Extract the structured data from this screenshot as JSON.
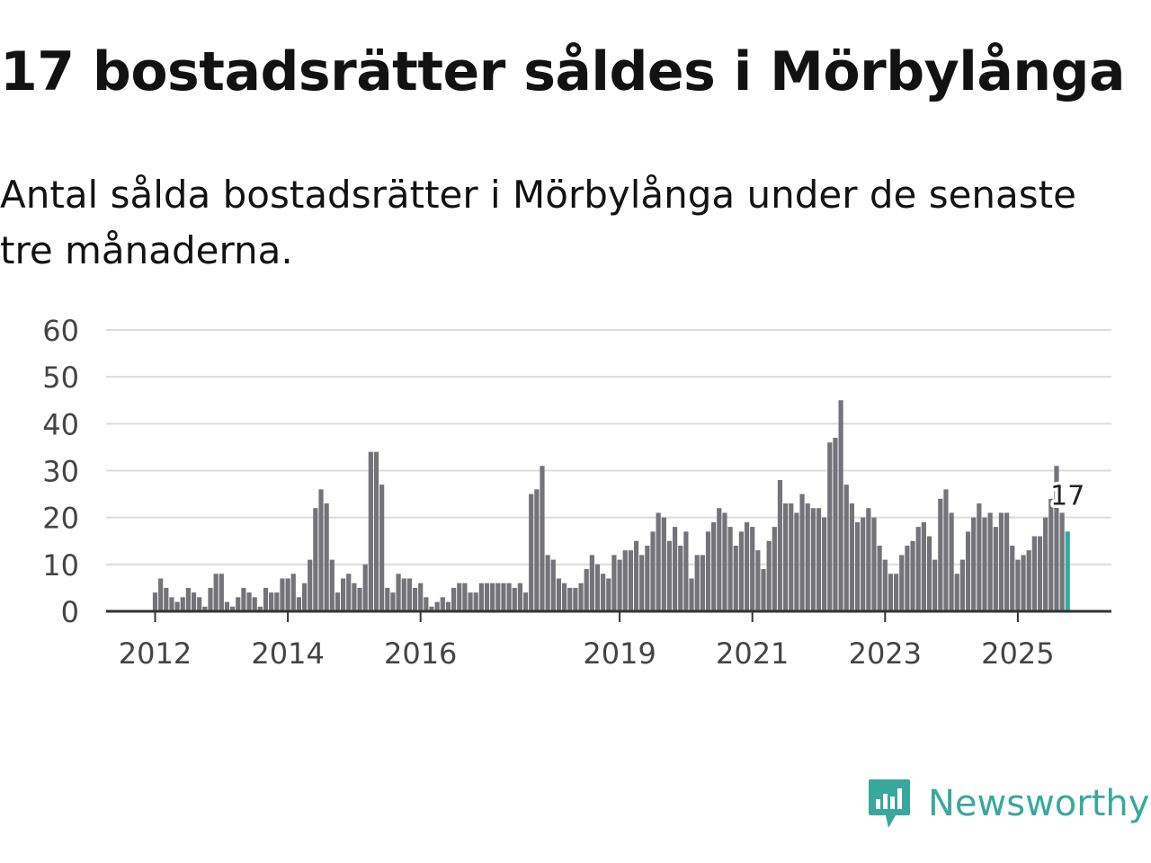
{
  "title": "17 bostadsrätter såldes i Mörbylånga",
  "subtitle": "Antal sålda bostadsrätter i Mörbylånga under de senaste tre månaderna.",
  "brand": {
    "name": "Newsworthy",
    "icon": "newsworthy-logo-icon",
    "color": "#3aa79c"
  },
  "chart_data": {
    "type": "bar",
    "ylim": [
      0,
      60
    ],
    "y_ticks": [
      "0",
      "10",
      "20",
      "30",
      "40",
      "50",
      "60"
    ],
    "x_tick_labels": [
      {
        "label": "2012",
        "index": 0
      },
      {
        "label": "2014",
        "index": 24
      },
      {
        "label": "2016",
        "index": 48
      },
      {
        "label": "2019",
        "index": 84
      },
      {
        "label": "2021",
        "index": 108
      },
      {
        "label": "2023",
        "index": 132
      },
      {
        "label": "2025",
        "index": 156
      }
    ],
    "start": "2012-01",
    "values": [
      4,
      7,
      5,
      3,
      2,
      3,
      5,
      4,
      3,
      1,
      5,
      8,
      8,
      2,
      1,
      3,
      5,
      4,
      3,
      1,
      5,
      4,
      4,
      7,
      7,
      8,
      3,
      6,
      11,
      22,
      26,
      23,
      11,
      4,
      7,
      8,
      6,
      5,
      10,
      34,
      34,
      27,
      5,
      4,
      8,
      7,
      7,
      5,
      6,
      3,
      1,
      2,
      3,
      2,
      5,
      6,
      6,
      4,
      4,
      6,
      6,
      6,
      6,
      6,
      6,
      5,
      6,
      4,
      25,
      26,
      31,
      12,
      11,
      7,
      6,
      5,
      5,
      6,
      9,
      12,
      10,
      8,
      7,
      12,
      11,
      13,
      13,
      15,
      12,
      14,
      17,
      21,
      20,
      15,
      18,
      14,
      17,
      7,
      12,
      12,
      17,
      19,
      22,
      21,
      18,
      14,
      17,
      19,
      18,
      13,
      9,
      15,
      18,
      28,
      23,
      23,
      21,
      25,
      23,
      22,
      22,
      20,
      36,
      37,
      45,
      27,
      23,
      19,
      20,
      22,
      20,
      14,
      11,
      8,
      8,
      12,
      14,
      15,
      18,
      19,
      16,
      11,
      24,
      26,
      21,
      8,
      11,
      17,
      20,
      23,
      20,
      21,
      18,
      21,
      21,
      14,
      11,
      12,
      13,
      16,
      16,
      20,
      24,
      31,
      21,
      17
    ],
    "highlight": {
      "label": "17",
      "value": 17,
      "color": "#3aa79c"
    },
    "bar_color": "#74737a",
    "grid_color": "#dcdcdc",
    "axis_color": "#333333",
    "tick_label_color": "#444444"
  }
}
